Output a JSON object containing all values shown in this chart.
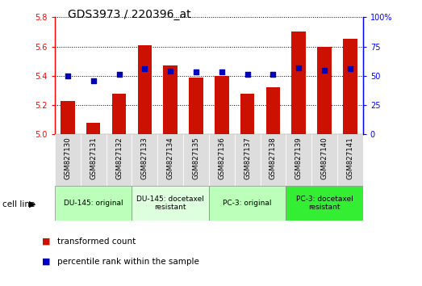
{
  "title": "GDS3973 / 220396_at",
  "samples": [
    "GSM827130",
    "GSM827131",
    "GSM827132",
    "GSM827133",
    "GSM827134",
    "GSM827135",
    "GSM827136",
    "GSM827137",
    "GSM827138",
    "GSM827139",
    "GSM827140",
    "GSM827141"
  ],
  "red_values": [
    5.23,
    5.08,
    5.28,
    5.61,
    5.47,
    5.39,
    5.4,
    5.28,
    5.32,
    5.7,
    5.6,
    5.65
  ],
  "blue_values": [
    50,
    46,
    51,
    56,
    54,
    53,
    53,
    51,
    51,
    57,
    55,
    56
  ],
  "ylim_left": [
    5.0,
    5.8
  ],
  "ylim_right": [
    0,
    100
  ],
  "yticks_left": [
    5.0,
    5.2,
    5.4,
    5.6,
    5.8
  ],
  "yticks_right": [
    0,
    25,
    50,
    75,
    100
  ],
  "bar_color": "#cc1100",
  "dot_color": "#0000bb",
  "group_labels": [
    "DU-145: original",
    "DU-145: docetaxel\nresistant",
    "PC-3: original",
    "PC-3: docetaxel\nresistant"
  ],
  "group_starts": [
    0,
    3,
    6,
    9
  ],
  "group_ends": [
    3,
    6,
    9,
    12
  ],
  "group_colors": [
    "#bbffbb",
    "#ddffdd",
    "#bbffbb",
    "#33ee33"
  ],
  "cell_line_label": "cell line",
  "legend_red": "transformed count",
  "legend_blue": "percentile rank within the sample",
  "bar_width": 0.55,
  "dot_size": 18,
  "title_fontsize": 10,
  "tick_fontsize": 7,
  "group_fontsize": 6.5,
  "legend_fontsize": 7.5
}
